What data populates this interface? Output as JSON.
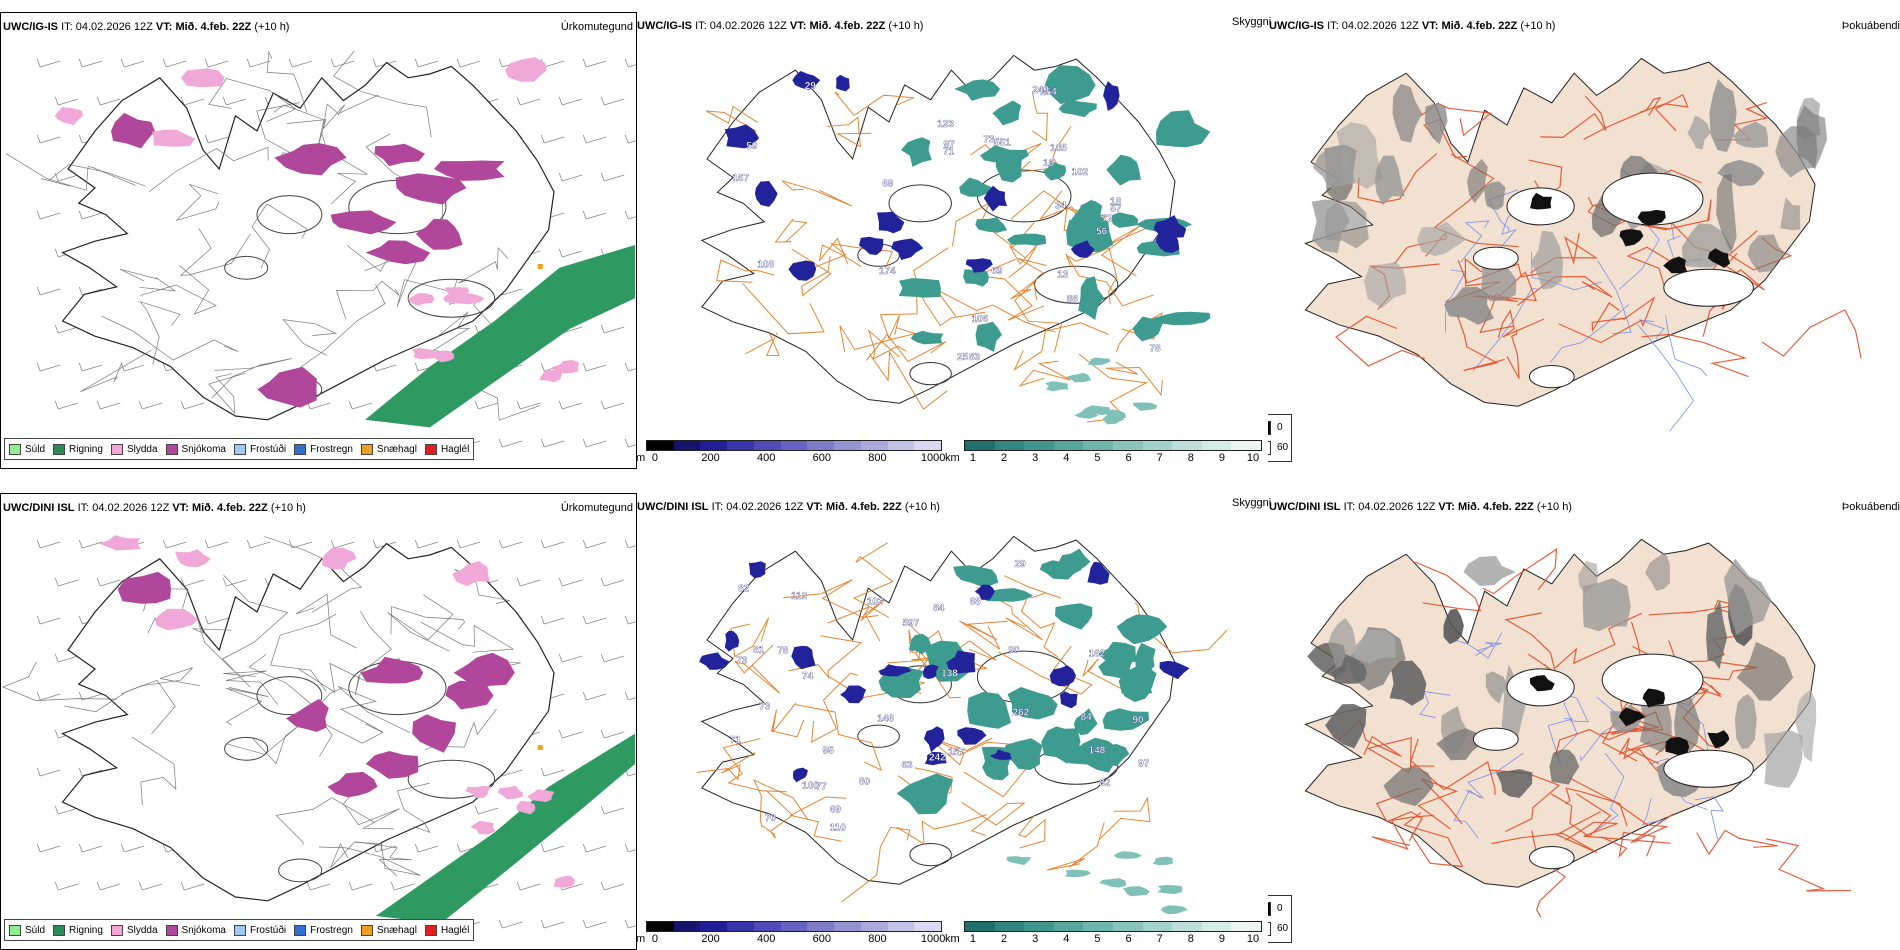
{
  "rows": [
    {
      "id": "top",
      "model": "UWC/IG-IS",
      "it_label": "IT:",
      "it_value": "04.02.2026 12Z",
      "vt_label": "VT:",
      "vt_value": "Mið. 4.feb. 22Z",
      "lead": "(+10 h)",
      "right_title": "Úrkomutegund",
      "middle_corner_title": "Skyggni",
      "fog_title": "Þokuábendi",
      "visibility_labels": [
        "73",
        "83",
        "56",
        "72",
        "69",
        "97",
        "102",
        "13",
        "174",
        "154",
        "69",
        "105",
        "78",
        "249",
        "59",
        "18",
        "29",
        "25",
        "88",
        "108",
        "106",
        "167",
        "16",
        "123",
        "57",
        "71",
        "551",
        "34"
      ]
    },
    {
      "id": "bottom",
      "model": "UWC/DINI ISL",
      "it_label": "IT:",
      "it_value": "04.02.2026 12Z",
      "vt_label": "VT:",
      "vt_value": "Mið. 4.feb. 22Z",
      "lead": "(+10 h)",
      "right_title": "Úrkomutegund",
      "middle_corner_title": "Skyggni",
      "fog_title": "Þokuábendi",
      "visibility_labels": [
        "90",
        "73",
        "81",
        "68",
        "63",
        "97",
        "110",
        "262",
        "157",
        "82",
        "112",
        "73",
        "69",
        "100",
        "90",
        "95",
        "70",
        "84",
        "80",
        "77",
        "71",
        "84",
        "82",
        "162",
        "78",
        "597",
        "146",
        "138",
        "74",
        "148",
        "103",
        "242",
        "29"
      ]
    }
  ],
  "precip_legend": [
    {
      "label": "Súld",
      "color": "#90ee90"
    },
    {
      "label": "Rigning",
      "color": "#2e8b57"
    },
    {
      "label": "Slydda",
      "color": "#f4a6d7"
    },
    {
      "label": "Snjókoma",
      "color": "#b0479a"
    },
    {
      "label": "Frostúði",
      "color": "#9ec9f0"
    },
    {
      "label": "Frostregn",
      "color": "#2f6fd0"
    },
    {
      "label": "Snæhagl",
      "color": "#f0a020"
    },
    {
      "label": "Haglél",
      "color": "#e02020"
    }
  ],
  "elevation_bar": {
    "unit": "m",
    "ticks": [
      "0",
      "200",
      "400",
      "600",
      "800",
      "1000"
    ],
    "colors": [
      "#000000",
      "#14146e",
      "#202096",
      "#3636a8",
      "#4c4cb4",
      "#6464c0",
      "#7c7cc8",
      "#9494d2",
      "#aaaadc",
      "#c2c2e6",
      "#d8d8f0"
    ]
  },
  "visibility_bar": {
    "unit": "km",
    "ticks": [
      "1",
      "2",
      "3",
      "4",
      "5",
      "6",
      "7",
      "8",
      "9",
      "10"
    ],
    "colors": [
      "#1f6f6a",
      "#2f8580",
      "#3f968f",
      "#56a69f",
      "#6eb5ae",
      "#88c4bd",
      "#a2d2cb",
      "#bcdfd9",
      "#d4ebe6",
      "#ebf6f3"
    ]
  },
  "fog_key": {
    "items": [
      "0",
      "60"
    ]
  },
  "colors": {
    "rain": "#2e9a62",
    "snow": "#b0479a",
    "sleet": "#f0a8d8",
    "road": "#e07a20",
    "fog_land": "#f2e0d0",
    "fog_road": "#e0502a",
    "river": "#7b8ee8",
    "coast": "#222222",
    "vis_teal": "#3d9b90",
    "vis_blue": "#22229a"
  }
}
